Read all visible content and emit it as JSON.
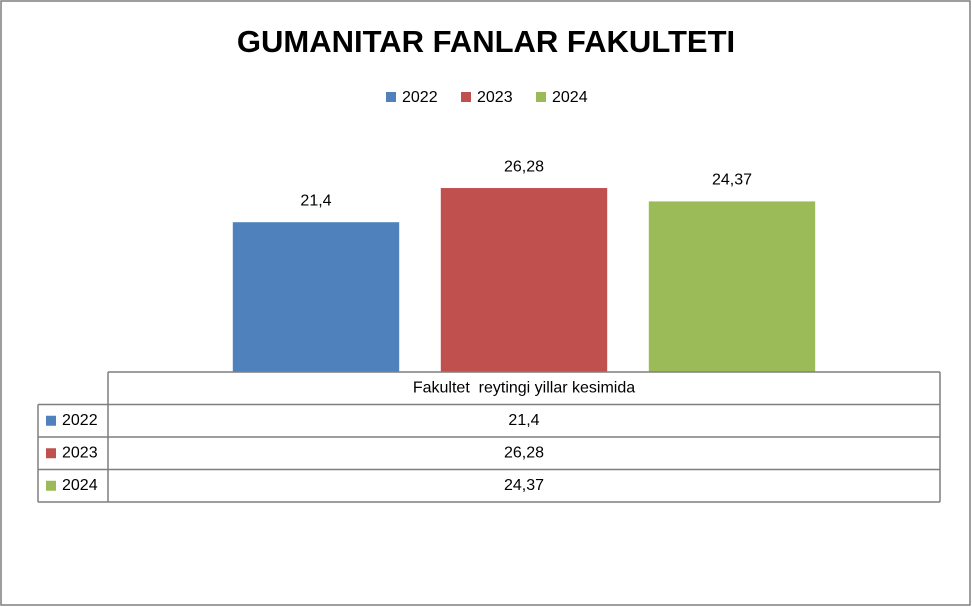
{
  "chart_data": {
    "type": "bar",
    "title": "GUMANITAR FANLAR FAKULTETI",
    "categories": [
      "Fakultet  reytingi yillar kesimida"
    ],
    "series": [
      {
        "name": "2022",
        "color": "#4f81bd",
        "values": [
          21.4
        ],
        "value_labels": [
          "21,4"
        ]
      },
      {
        "name": "2023",
        "color": "#c0504d",
        "values": [
          26.28
        ],
        "value_labels": [
          "26,28"
        ]
      },
      {
        "name": "2024",
        "color": "#9bbb59",
        "values": [
          24.37
        ],
        "value_labels": [
          "24,37"
        ]
      }
    ],
    "ylim": [
      0,
      35
    ],
    "legend": "top",
    "data_table": true
  }
}
